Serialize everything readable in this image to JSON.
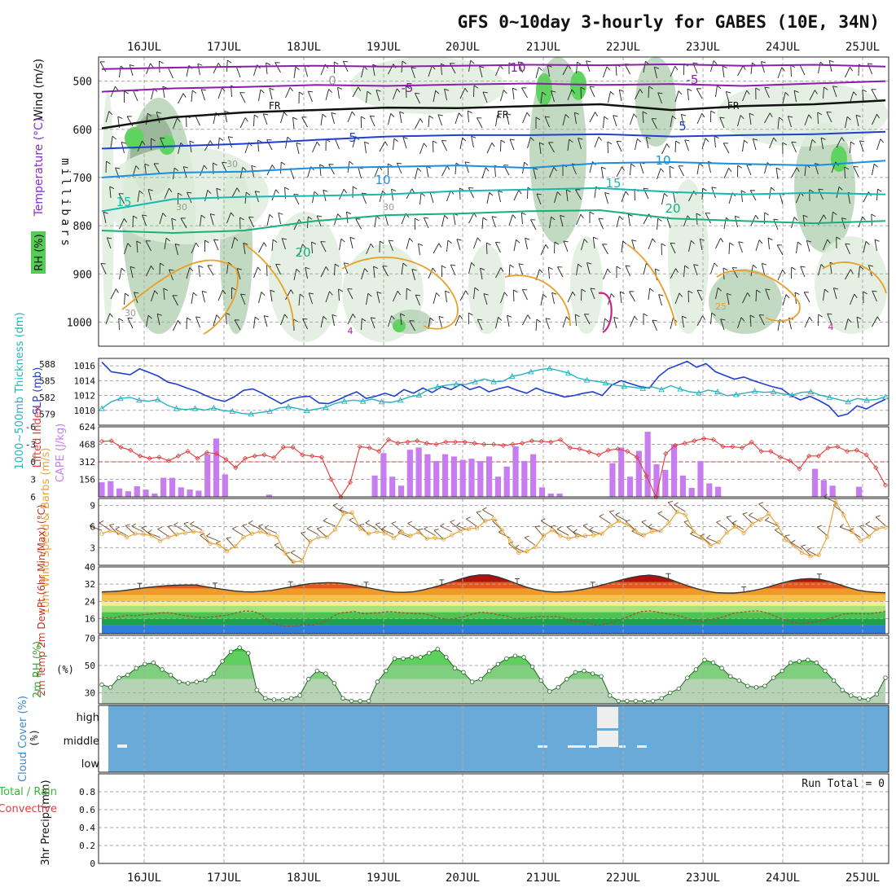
{
  "title": "GFS 0~10day 3-hourly for GABES (10E, 34N)",
  "days": [
    "16JUL",
    "17JUL",
    "18JUL",
    "19JUL",
    "20JUL",
    "21JUL",
    "22JUL",
    "23JUL",
    "24JUL",
    "25JUL"
  ],
  "colors": {
    "rh_light": "#dfeedd",
    "rh_mid": "#b7d3b6",
    "rh_dark": "#94b294",
    "rh_green": "#5fd35f",
    "cape_bar": "#c77df0",
    "lifted": "#e23b3b",
    "wind_speed": "#e8a33a",
    "barb": "#6b4a2a",
    "slp": "#1f3fcf",
    "thick": "#27b3bf",
    "cloud_bg": "#6aaad8",
    "cloud_fill": "#eeeeee",
    "rh2m": "#44cc44",
    "dewpt": "#a0522d"
  },
  "chart_data": [
    {
      "type": "contour",
      "panel": "upper-air",
      "ylabel": "millibars",
      "ylabel_parts": [
        "Wind (m/s)",
        "Temperature (°C)",
        "RH (%)"
      ],
      "yticks": [
        500,
        600,
        700,
        800,
        900,
        1000
      ],
      "ylim": [
        1050,
        450
      ],
      "contour_labels": [
        "10",
        "-5",
        "-5",
        "0",
        "FR",
        "FR",
        "FR",
        "5",
        "5",
        "10",
        "10",
        "15",
        "15",
        "20",
        "20",
        "30",
        "30",
        "30",
        "30",
        "25",
        "4",
        "4"
      ],
      "isotherms": [
        {
          "name": "-10",
          "p": [
            475,
            472,
            470,
            468,
            470,
            468,
            466,
            467,
            465,
            468,
            466,
            470
          ]
        },
        {
          "name": "-5",
          "p": [
            522,
            515,
            512,
            508,
            510,
            507,
            505,
            508,
            506,
            510,
            505,
            500
          ]
        },
        {
          "name": "0 / FR",
          "p": [
            598,
            575,
            565,
            560,
            555,
            556,
            552,
            548,
            560,
            552,
            548,
            540
          ]
        },
        {
          "name": "5",
          "p": [
            640,
            635,
            630,
            622,
            615,
            612,
            612,
            610,
            615,
            612,
            610,
            605
          ]
        },
        {
          "name": "10",
          "p": [
            700,
            690,
            688,
            680,
            678,
            675,
            680,
            670,
            668,
            672,
            675,
            665
          ]
        },
        {
          "name": "15",
          "p": [
            770,
            745,
            740,
            738,
            735,
            728,
            725,
            722,
            730,
            735,
            732,
            735
          ]
        },
        {
          "name": "20",
          "p": [
            810,
            815,
            810,
            790,
            778,
            775,
            770,
            768,
            785,
            790,
            795,
            790
          ]
        }
      ]
    },
    {
      "type": "line",
      "panel": "slp-thickness",
      "ylabel_left": "1000~500mb Thickness (dm)",
      "ylabel_right": "SLP (mb)",
      "yticks_slp": [
        1010,
        1012,
        1014,
        1016
      ],
      "ylim_slp": [
        1008,
        1017
      ],
      "yticks_thick": [
        579,
        582,
        585,
        588
      ],
      "ylim_thick": [
        577,
        589
      ],
      "slp": [
        1016.5,
        1015.2,
        1015.0,
        1014.8,
        1015.6,
        1015.1,
        1014.6,
        1013.8,
        1013.5,
        1013.0,
        1012.6,
        1012.0,
        1011.5,
        1011.2,
        1011.8,
        1012.7,
        1012.9,
        1012.3,
        1011.6,
        1010.9,
        1011.5,
        1011.8,
        1011.9,
        1011.0,
        1010.9,
        1011.4,
        1012.0,
        1012.5,
        1011.6,
        1011.9,
        1012.3,
        1011.9,
        1012.8,
        1012.3,
        1013.0,
        1012.4,
        1013.2,
        1012.8,
        1013.5,
        1012.8,
        1013.2,
        1012.5,
        1012.9,
        1013.2,
        1012.7,
        1012.3,
        1013.0,
        1012.5,
        1012.2,
        1011.8,
        1012.0,
        1012.3,
        1012.5,
        1012.0,
        1013.4,
        1014.0,
        1013.6,
        1013.2,
        1013.0,
        1014.6,
        1015.6,
        1016.1,
        1016.6,
        1015.8,
        1016.3,
        1015.2,
        1014.7,
        1014.2,
        1014.5,
        1014.0,
        1013.6,
        1013.2,
        1012.9,
        1012.0,
        1011.4,
        1011.9,
        1011.3,
        1010.6,
        1009.2,
        1009.5,
        1010.6,
        1010.2,
        1010.9,
        1011.5
      ],
      "thickness": [
        580.0,
        581.2,
        581.8,
        582.0,
        581.5,
        581.3,
        581.6,
        580.6,
        580.0,
        579.8,
        580.0,
        579.7,
        580.1,
        579.6,
        579.5,
        579.1,
        579.0,
        579.3,
        579.5,
        580.1,
        580.3,
        580.0,
        579.6,
        579.9,
        580.2,
        580.9,
        581.3,
        581.5,
        581.3,
        581.7,
        581.2,
        581.1,
        581.5,
        582.1,
        582.4,
        583.4,
        583.9,
        584.2,
        584.4,
        584.3,
        584.8,
        585.3,
        584.8,
        584.9,
        585.8,
        586.1,
        586.6,
        587.0,
        587.2,
        586.8,
        586.4,
        585.5,
        585.1,
        584.9,
        584.6,
        584.2,
        584.0,
        583.8,
        583.6,
        583.9,
        583.4,
        584.1,
        583.5,
        583.0,
        582.8,
        583.3,
        583.0,
        582.3,
        582.5,
        582.8,
        583.1,
        582.9,
        583.0,
        582.6,
        582.4,
        582.9,
        583.0,
        582.4,
        582.0,
        581.6,
        581.2,
        581.8,
        581.5,
        581.6,
        582.1
      ]
    },
    {
      "type": "bar+line",
      "panel": "cape-lifted-index",
      "ylabel_left": "Lifted Index",
      "ylabel_right": "CAPE (J/kg)",
      "yticks_li": [
        "-6",
        "-3",
        "0",
        "3",
        "6"
      ],
      "ylim_li": [
        6,
        -6
      ],
      "yticks_cape": [
        156,
        312,
        468,
        624
      ],
      "ylim_cape": [
        0,
        624
      ],
      "cape": [
        130,
        140,
        75,
        50,
        95,
        65,
        30,
        170,
        170,
        85,
        65,
        55,
        380,
        520,
        200,
        0,
        0,
        0,
        0,
        20,
        0,
        0,
        0,
        0,
        0,
        0,
        0,
        0,
        0,
        0,
        0,
        190,
        390,
        180,
        100,
        420,
        440,
        380,
        320,
        380,
        360,
        330,
        340,
        320,
        360,
        180,
        270,
        450,
        320,
        380,
        85,
        30,
        30,
        0,
        0,
        0,
        0,
        0,
        300,
        440,
        180,
        410,
        580,
        290,
        240,
        470,
        190,
        80,
        320,
        120,
        90,
        0,
        0,
        0,
        0,
        0,
        0,
        0,
        0,
        0,
        0,
        250,
        150,
        100,
        0,
        0,
        90,
        0,
        0,
        0
      ],
      "lifted_index": [
        -3.5,
        -3.6,
        -2.5,
        -2.0,
        -1.0,
        -0.6,
        -0.8,
        -0.2,
        -1.0,
        -1.8,
        -0.6,
        -1.6,
        -1.4,
        -0.4,
        1.0,
        -0.6,
        -1.0,
        -1.2,
        -0.7,
        -2.5,
        -2.5,
        -1.2,
        -1.0,
        -0.8,
        3.0,
        6.0,
        3.5,
        -2.6,
        -2.4,
        -1.8,
        -3.8,
        -3.2,
        -3.4,
        -3.6,
        -3.2,
        -3.0,
        -3.4,
        -3.4,
        -3.4,
        -3.2,
        -3.0,
        -3.0,
        -2.8,
        -3.0,
        -3.2,
        -3.6,
        -3.5,
        -3.4,
        -3.8,
        -2.4,
        -2.2,
        -1.7,
        -1.2,
        -2.0,
        -2.2,
        -1.8,
        -0.8,
        2.4,
        6.0,
        -1.4,
        -2.8,
        -3.2,
        -3.6,
        -4.0,
        -3.8,
        -2.6,
        -2.6,
        -2.4,
        -3.4,
        -1.8,
        -1.8,
        -0.8,
        -0.2,
        1.2,
        -1.0,
        -1.0,
        -2.4,
        -2.6,
        -1.8,
        -2.0,
        -1.2,
        1.0,
        4.0
      ]
    },
    {
      "type": "line",
      "panel": "10m-wind",
      "ylabel": "10m Wind Speed & Barbs (m/s)",
      "yticks": [
        3,
        6,
        9
      ],
      "ylim": [
        0.5,
        10
      ],
      "wind_speed": [
        5.0,
        5.4,
        5.1,
        4.5,
        5.0,
        4.9,
        4.7,
        4.0,
        4.5,
        4.9,
        5.1,
        5.3,
        5.2,
        3.6,
        3.5,
        2.5,
        3.2,
        4.5,
        5.0,
        5.3,
        4.9,
        4.6,
        2.2,
        1.0,
        1.1,
        3.9,
        4.5,
        4.5,
        5.6,
        7.8,
        8.0,
        5.7,
        5.0,
        5.3,
        5.1,
        4.4,
        5.2,
        4.7,
        5.2,
        4.3,
        4.4,
        4.2,
        4.8,
        5.4,
        5.7,
        5.8,
        6.8,
        7.1,
        5.5,
        3.9,
        2.3,
        2.5,
        3.1,
        4.7,
        5.5,
        4.7,
        4.3,
        4.6,
        4.7,
        4.8,
        5.0,
        6.1,
        6.8,
        6.3,
        5.4,
        4.8,
        5.3,
        5.4,
        6.5,
        8.1,
        7.7,
        5.3,
        4.4,
        3.3,
        3.8,
        5.2,
        6.0,
        5.1,
        6.4,
        7.0,
        7.8,
        6.3,
        4.1,
        3.3,
        2.3,
        1.8,
        2.0,
        4.5,
        9.6,
        7.6,
        5.3,
        4.0,
        4.6,
        5.7,
        5.9
      ]
    },
    {
      "type": "area",
      "panel": "2m-temperature",
      "ylabel": "2m Temp 2m DewPt (6hr Min/Max) (°C)",
      "yticks": [
        16,
        24,
        32,
        40
      ],
      "ylim": [
        9,
        40
      ],
      "temp": [
        28.4,
        28.6,
        28.9,
        29.4,
        30.0,
        30.6,
        31.0,
        31.3,
        31.5,
        31.6,
        31.6,
        30.8,
        30.1,
        29.5,
        28.9,
        28.5,
        28.4,
        28.7,
        29.1,
        29.9,
        30.7,
        31.5,
        32.2,
        32.5,
        32.7,
        32.6,
        32.1,
        31.3,
        30.5,
        29.6,
        28.8,
        28.3,
        28.2,
        28.5,
        29.3,
        30.4,
        31.6,
        33.0,
        34.4,
        35.6,
        36.3,
        36.3,
        35.3,
        33.8,
        32.1,
        30.6,
        29.4,
        28.7,
        28.3,
        28.5,
        28.9,
        29.6,
        30.5,
        31.6,
        32.8,
        33.9,
        35.0,
        35.8,
        36.2,
        35.7,
        34.5,
        32.9,
        31.3,
        29.9,
        28.8,
        28.1,
        27.9,
        27.9,
        28.3,
        29.0,
        30.0,
        31.2,
        32.5,
        33.6,
        34.3,
        34.6,
        34.3,
        33.3,
        32.0,
        30.5,
        29.3,
        28.6,
        28.2,
        28.0
      ],
      "dewpt": [
        16.6,
        16.2,
        16.8,
        17.6,
        17.3,
        17.8,
        18.2,
        18.7,
        18.8,
        18.0,
        17.4,
        16.8,
        16.5,
        16.8,
        17.2,
        17.7,
        18.8,
        19.6,
        19.4,
        17.7,
        14.2,
        12.9,
        12.5,
        12.7,
        13.3,
        13.0,
        13.8,
        16.1,
        18.3,
        18.9,
        19.3,
        18.3,
        18.5,
        18.8,
        19.3,
        19.0,
        18.6,
        18.4,
        18.4,
        17.6,
        16.3,
        15.7,
        16.1,
        16.9,
        18.2,
        19.0,
        18.6,
        17.8,
        17.3,
        16.0,
        16.2,
        16.6,
        17.0,
        16.9,
        17.0,
        16.1,
        15.0,
        14.7,
        13.7,
        12.8,
        13.7,
        14.8,
        16.2,
        17.8,
        19.3,
        19.6,
        19.0,
        18.3,
        17.7,
        16.8,
        15.4,
        14.6,
        15.4,
        16.1,
        17.1,
        18.6,
        19.0,
        19.5,
        19.6,
        18.6,
        17.0,
        15.4,
        14.2,
        13.7,
        14.1,
        14.8,
        15.8,
        16.8,
        18.1,
        18.4,
        18.3,
        18.2,
        18.8,
        19.3
      ]
    },
    {
      "type": "area",
      "panel": "2m-rh",
      "ylabel": "2m RH (%)",
      "yticks": [
        30,
        50,
        70
      ],
      "ylim": [
        22,
        72
      ],
      "rh": [
        36,
        34,
        41,
        43,
        48,
        51,
        52,
        47,
        43,
        38,
        37,
        38,
        39,
        44,
        53,
        60,
        63,
        59,
        32,
        26,
        25,
        25,
        26,
        28,
        40,
        46,
        44,
        37,
        26,
        24,
        24,
        24,
        38,
        46,
        55,
        55,
        56,
        56,
        59,
        62,
        56,
        48,
        45,
        38,
        40,
        46,
        51,
        55,
        57,
        56,
        49,
        39,
        31,
        34,
        40,
        45,
        46,
        44,
        42,
        28,
        24,
        24,
        24,
        24,
        24,
        26,
        30,
        33,
        41,
        47,
        54,
        52,
        48,
        42,
        39,
        35,
        34,
        35,
        41,
        46,
        52,
        53,
        54,
        52,
        46,
        39,
        32,
        28,
        26,
        25,
        29,
        41
      ]
    },
    {
      "type": "heatmap",
      "panel": "cloud-cover",
      "ylabel": "Cloud Cover (%)",
      "yticks": [
        "low",
        "middle",
        "high"
      ]
    },
    {
      "type": "bar",
      "panel": "3hr-precip",
      "ylabel": "3hr Precip (mm)",
      "ylabel_extra": [
        "Total / Rain",
        "Convective"
      ],
      "yticks": [
        "0",
        "0.2",
        "0.4",
        "0.6",
        "0.8"
      ],
      "ylim": [
        0,
        1
      ],
      "annotation": "Run Total = 0",
      "values": []
    }
  ]
}
